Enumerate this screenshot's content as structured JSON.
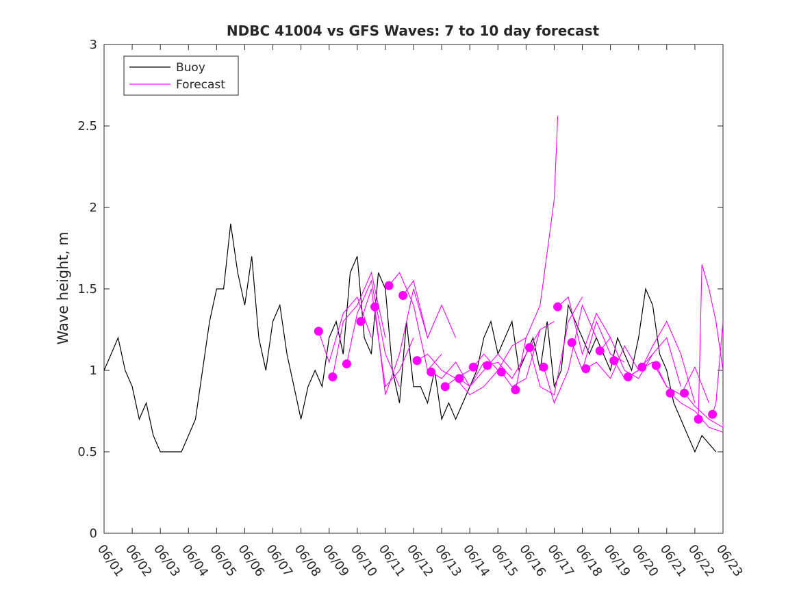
{
  "chart_data": {
    "type": "line",
    "title": "NDBC 41004 vs GFS Waves: 7 to 10 day forecast",
    "xlabel": "",
    "ylabel": "Wave height, m",
    "x_axis": {
      "type": "date",
      "range": [
        "2024-06-01",
        "2024-06-23"
      ],
      "tick_labels": [
        "06/01",
        "06/02",
        "06/03",
        "06/04",
        "06/05",
        "06/06",
        "06/07",
        "06/08",
        "06/09",
        "06/10",
        "06/11",
        "06/12",
        "06/13",
        "06/14",
        "06/15",
        "06/16",
        "06/17",
        "06/18",
        "06/19",
        "06/20",
        "06/21",
        "06/22",
        "06/23"
      ]
    },
    "y_axis": {
      "range": [
        0,
        3
      ],
      "ticks": [
        0,
        0.5,
        1,
        1.5,
        2,
        2.5,
        3
      ],
      "tick_labels": [
        "0",
        "0.5",
        "1",
        "1.5",
        "2",
        "2.5",
        "3"
      ]
    },
    "grid": false,
    "legend": {
      "position": "top-left",
      "entries": [
        {
          "label": "Buoy",
          "color": "#000000"
        },
        {
          "label": "Forecast",
          "color": "#ff00ff"
        }
      ]
    },
    "colors": {
      "buoy": "#000000",
      "forecast": "#ff00ff",
      "axis": "#262626"
    },
    "series": [
      {
        "name": "Buoy",
        "x": [
          "06/01 00:00",
          "06/01 06:00",
          "06/01 12:00",
          "06/01 18:00",
          "06/02 00:00",
          "06/02 06:00",
          "06/02 12:00",
          "06/02 18:00",
          "06/03 00:00",
          "06/03 06:00",
          "06/03 12:00",
          "06/03 18:00",
          "06/04 00:00",
          "06/04 06:00",
          "06/04 12:00",
          "06/04 18:00",
          "06/05 00:00",
          "06/05 06:00",
          "06/05 12:00",
          "06/05 18:00",
          "06/06 00:00",
          "06/06 06:00",
          "06/06 12:00",
          "06/06 18:00",
          "06/07 00:00",
          "06/07 06:00",
          "06/07 12:00",
          "06/07 18:00",
          "06/08 00:00",
          "06/08 06:00",
          "06/08 12:00",
          "06/08 18:00",
          "06/09 00:00",
          "06/09 06:00",
          "06/09 12:00",
          "06/09 18:00",
          "06/10 00:00",
          "06/10 06:00",
          "06/10 12:00",
          "06/10 18:00",
          "06/11 00:00",
          "06/11 06:00",
          "06/11 12:00",
          "06/11 18:00",
          "06/12 00:00",
          "06/12 06:00",
          "06/12 12:00",
          "06/12 18:00",
          "06/13 00:00",
          "06/13 06:00",
          "06/13 12:00",
          "06/13 18:00",
          "06/14 00:00",
          "06/14 06:00",
          "06/14 12:00",
          "06/14 18:00",
          "06/15 00:00",
          "06/15 06:00",
          "06/15 12:00",
          "06/15 18:00",
          "06/16 00:00",
          "06/16 06:00",
          "06/16 12:00",
          "06/16 18:00",
          "06/17 00:00",
          "06/17 06:00",
          "06/17 12:00",
          "06/17 18:00",
          "06/18 00:00",
          "06/18 06:00",
          "06/18 12:00",
          "06/18 18:00",
          "06/19 00:00",
          "06/19 06:00",
          "06/19 12:00",
          "06/19 18:00",
          "06/20 00:00",
          "06/20 06:00",
          "06/20 12:00",
          "06/20 18:00",
          "06/21 00:00",
          "06/21 06:00",
          "06/21 12:00",
          "06/21 18:00",
          "06/22 00:00",
          "06/22 06:00",
          "06/22 12:00",
          "06/22 18:00"
        ],
        "values": [
          1.0,
          1.1,
          1.2,
          1.0,
          0.9,
          0.7,
          0.8,
          0.6,
          0.5,
          0.5,
          0.5,
          0.5,
          0.6,
          0.7,
          1.0,
          1.3,
          1.5,
          1.5,
          1.9,
          1.6,
          1.4,
          1.7,
          1.2,
          1.0,
          1.3,
          1.4,
          1.1,
          0.9,
          0.7,
          0.9,
          1.0,
          0.9,
          1.2,
          1.3,
          1.1,
          1.6,
          1.7,
          1.2,
          1.1,
          1.6,
          1.5,
          1.0,
          0.8,
          1.3,
          0.9,
          0.9,
          0.8,
          1.0,
          0.7,
          0.8,
          0.7,
          0.8,
          0.9,
          1.0,
          1.2,
          1.3,
          1.1,
          1.2,
          1.3,
          1.0,
          1.1,
          1.2,
          1.0,
          1.3,
          0.9,
          1.0,
          1.4,
          1.3,
          1.2,
          1.1,
          1.2,
          1.1,
          1.0,
          1.2,
          1.1,
          1.0,
          1.2,
          1.5,
          1.4,
          1.1,
          1.0,
          0.8,
          0.7,
          0.6,
          0.5,
          0.6,
          0.55,
          0.5
        ]
      },
      {
        "name": "Forecast",
        "runs": [
          {
            "x": [
              "06/08 15:00",
              "06/09 00:00",
              "06/09 12:00",
              "06/10 00:00",
              "06/10 12:00"
            ],
            "values": [
              1.24,
              1.05,
              1.35,
              1.45,
              1.2
            ]
          },
          {
            "x": [
              "06/09 03:00",
              "06/09 12:00",
              "06/10 00:00",
              "06/10 12:00",
              "06/11 00:00"
            ],
            "values": [
              0.96,
              1.3,
              1.4,
              1.6,
              1.2
            ]
          },
          {
            "x": [
              "06/09 15:00",
              "06/10 00:00",
              "06/10 12:00",
              "06/11 00:00",
              "06/11 12:00"
            ],
            "values": [
              1.04,
              1.35,
              1.55,
              1.1,
              0.9
            ]
          },
          {
            "x": [
              "06/10 03:00",
              "06/10 12:00",
              "06/11 00:00",
              "06/11 12:00",
              "06/12 00:00"
            ],
            "values": [
              1.3,
              1.5,
              0.9,
              1.0,
              1.2
            ]
          },
          {
            "x": [
              "06/10 15:00",
              "06/11 00:00",
              "06/11 12:00",
              "06/12 00:00",
              "06/12 12:00"
            ],
            "values": [
              1.39,
              0.85,
              1.1,
              1.5,
              1.2
            ]
          },
          {
            "x": [
              "06/11 03:00",
              "06/11 12:00",
              "06/12 00:00",
              "06/12 12:00",
              "06/13 00:00"
            ],
            "values": [
              1.52,
              1.6,
              1.4,
              1.0,
              1.1
            ]
          },
          {
            "x": [
              "06/11 15:00",
              "06/12 00:00",
              "06/12 12:00",
              "06/13 00:00",
              "06/13 12:00"
            ],
            "values": [
              1.46,
              1.55,
              1.2,
              1.4,
              1.2
            ]
          },
          {
            "x": [
              "06/12 03:00",
              "06/12 12:00",
              "06/13 00:00",
              "06/13 12:00",
              "06/14 00:00"
            ],
            "values": [
              1.06,
              1.1,
              1.0,
              0.95,
              1.0
            ]
          },
          {
            "x": [
              "06/12 15:00",
              "06/13 00:00",
              "06/13 12:00",
              "06/14 00:00",
              "06/14 12:00"
            ],
            "values": [
              0.99,
              0.95,
              1.05,
              0.9,
              1.05
            ]
          },
          {
            "x": [
              "06/13 03:00",
              "06/13 12:00",
              "06/14 00:00",
              "06/14 12:00",
              "06/15 00:00"
            ],
            "values": [
              0.9,
              0.95,
              0.85,
              0.9,
              1.0
            ]
          },
          {
            "x": [
              "06/13 15:00",
              "06/14 00:00",
              "06/14 12:00",
              "06/15 00:00",
              "06/15 12:00"
            ],
            "values": [
              0.95,
              0.9,
              1.0,
              1.1,
              1.0
            ]
          },
          {
            "x": [
              "06/14 03:00",
              "06/14 12:00",
              "06/15 00:00",
              "06/15 12:00",
              "06/16 00:00"
            ],
            "values": [
              1.02,
              1.1,
              1.0,
              1.15,
              1.2
            ]
          },
          {
            "x": [
              "06/14 15:00",
              "06/15 00:00",
              "06/15 12:00",
              "06/16 00:00",
              "06/16 12:00"
            ],
            "values": [
              1.03,
              1.05,
              0.95,
              1.1,
              1.25
            ]
          },
          {
            "x": [
              "06/15 03:00",
              "06/15 12:00",
              "06/16 00:00",
              "06/16 12:00",
              "06/17 00:00"
            ],
            "values": [
              0.99,
              0.9,
              0.95,
              1.25,
              1.3
            ]
          },
          {
            "x": [
              "06/15 15:00",
              "06/16 00:00",
              "06/16 12:00",
              "06/17 00:00",
              "06/17 03:00"
            ],
            "values": [
              0.88,
              1.2,
              1.4,
              2.05,
              2.56
            ]
          },
          {
            "x": [
              "06/16 03:00",
              "06/16 12:00",
              "06/17 00:00",
              "06/17 12:00",
              "06/18 00:00"
            ],
            "values": [
              1.14,
              0.9,
              0.85,
              1.3,
              1.45
            ]
          },
          {
            "x": [
              "06/16 15:00",
              "06/17 00:00",
              "06/17 12:00",
              "06/18 00:00",
              "06/18 12:00"
            ],
            "values": [
              1.02,
              0.8,
              1.0,
              1.4,
              1.2
            ]
          },
          {
            "x": [
              "06/17 03:00",
              "06/17 12:00",
              "06/18 00:00",
              "06/18 12:00",
              "06/19 00:00"
            ],
            "values": [
              1.39,
              1.45,
              1.1,
              1.35,
              1.2
            ]
          },
          {
            "x": [
              "06/17 15:00",
              "06/18 00:00",
              "06/18 12:00",
              "06/19 00:00",
              "06/19 12:00"
            ],
            "values": [
              1.17,
              1.0,
              1.3,
              1.1,
              1.05
            ]
          },
          {
            "x": [
              "06/18 03:00",
              "06/18 12:00",
              "06/19 00:00",
              "06/19 12:00",
              "06/20 00:00"
            ],
            "values": [
              1.01,
              1.05,
              0.95,
              1.15,
              1.0
            ]
          },
          {
            "x": [
              "06/18 15:00",
              "06/19 00:00",
              "06/19 12:00",
              "06/20 00:00",
              "06/20 12:00"
            ],
            "values": [
              1.12,
              1.2,
              1.0,
              0.95,
              1.1
            ]
          },
          {
            "x": [
              "06/19 03:00",
              "06/19 12:00",
              "06/20 00:00",
              "06/20 12:00",
              "06/21 00:00"
            ],
            "values": [
              1.06,
              0.95,
              1.0,
              1.05,
              0.9
            ]
          },
          {
            "x": [
              "06/19 15:00",
              "06/20 00:00",
              "06/20 12:00",
              "06/21 00:00",
              "06/21 12:00"
            ],
            "values": [
              0.96,
              1.0,
              1.1,
              1.2,
              0.9
            ]
          },
          {
            "x": [
              "06/20 03:00",
              "06/20 12:00",
              "06/21 00:00",
              "06/21 12:00",
              "06/22 00:00"
            ],
            "values": [
              1.02,
              1.15,
              1.3,
              1.1,
              0.8
            ]
          },
          {
            "x": [
              "06/20 15:00",
              "06/21 00:00",
              "06/21 12:00",
              "06/22 00:00",
              "06/22 12:00"
            ],
            "values": [
              1.03,
              0.9,
              0.85,
              1.02,
              0.8
            ]
          },
          {
            "x": [
              "06/21 03:00",
              "06/21 12:00",
              "06/22 00:00",
              "06/22 12:00",
              "06/23 00:00"
            ],
            "values": [
              0.86,
              0.8,
              0.75,
              0.65,
              0.62
            ]
          },
          {
            "x": [
              "06/21 15:00",
              "06/22 00:00",
              "06/22 12:00",
              "06/23 00:00",
              "06/23 00:00"
            ],
            "values": [
              0.86,
              0.78,
              0.7,
              0.65,
              0.68
            ]
          },
          {
            "x": [
              "06/22 03:00",
              "06/22 06:00",
              "06/22 12:00",
              "06/22 18:00",
              "06/23 00:00"
            ],
            "values": [
              0.7,
              1.65,
              1.5,
              1.3,
              1.0
            ]
          },
          {
            "x": [
              "06/22 15:00",
              "06/22 18:00",
              "06/23 00:00",
              "06/23 00:00",
              "06/23 00:00"
            ],
            "values": [
              0.73,
              0.8,
              1.3,
              1.3,
              1.3
            ]
          }
        ]
      }
    ]
  }
}
